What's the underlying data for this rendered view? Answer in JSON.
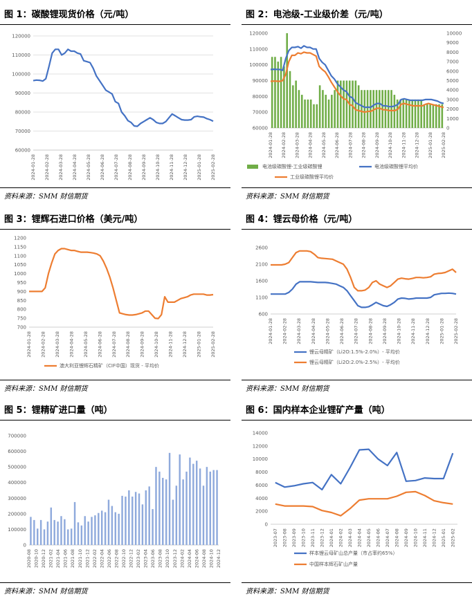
{
  "source_note": "资料来源：SMM  财信期货",
  "charts": [
    {
      "figure_title": "图 1：碳酸锂现货价格（元/吨）",
      "chart_data": {
        "type": "line",
        "title": "碳酸锂现货价格（元/吨）",
        "ylim": [
          60000,
          120000
        ],
        "yticks": [
          "60000",
          "70000",
          "80000",
          "90000",
          "100000",
          "110000",
          "120000"
        ],
        "xticks": [
          "2024-01-28",
          "2024-02-28",
          "2024-03-28",
          "2024-04-28",
          "2024-05-28",
          "2024-06-28",
          "2024-07-28",
          "2024-08-28",
          "2024-09-28",
          "2024-10-28",
          "2024-11-28",
          "2024-12-28",
          "2025-01-28",
          "2025-02-28"
        ],
        "series": [
          {
            "name": "碳酸锂现货价格",
            "color": "#4472c4",
            "values": [
              96500,
              96800,
              96700,
              96300,
              97500,
              104000,
              111000,
              113000,
              113000,
              110000,
              111000,
              113000,
              112000,
              112000,
              111000,
              110500,
              107000,
              106500,
              106000,
              103000,
              99000,
              96500,
              94000,
              91500,
              90500,
              89500,
              85500,
              84500,
              80000,
              78000,
              75500,
              74500,
              72700,
              72500,
              74000,
              75000,
              76000,
              77000,
              76000,
              74500,
              74000,
              74000,
              75000,
              77000,
              79000,
              78000,
              77000,
              76000,
              75800,
              75800,
              76000,
              77500,
              77800,
              77500,
              77300,
              76500,
              76000,
              75200
            ]
          }
        ]
      }
    },
    {
      "figure_title": "图 2：电池级-工业级价差（元/吨）",
      "chart_data": {
        "type": "line",
        "title": "电池级-工业级价差（元/吨）",
        "ylim": [
          60000,
          120000
        ],
        "y2lim": [
          0,
          10000
        ],
        "yticks": [
          "60000",
          "70000",
          "80000",
          "90000",
          "100000",
          "110000",
          "120000"
        ],
        "y2ticks": [
          "0",
          "1000",
          "2000",
          "3000",
          "4000",
          "5000",
          "6000",
          "7000",
          "8000",
          "9000",
          "10000"
        ],
        "xticks": [
          "2024-01-28",
          "2024-02-28",
          "2024-03-28",
          "2024-04-28",
          "2024-05-28",
          "2024-06-28",
          "2024-07-28",
          "2024-08-28",
          "2024-09-28",
          "2024-10-28",
          "2024-11-28",
          "2024-12-28",
          "2025-01-28",
          "2025-02-28"
        ],
        "legend": [
          "电池级碳酸锂-工业级碳酸锂",
          "电池级碳酸锂平均价",
          "工业级碳酸锂平均价"
        ],
        "bars": {
          "name": "电池级碳酸锂-工业级碳酸锂",
          "color": "#70ad47",
          "values": [
            7500,
            7500,
            7000,
            7500,
            6500,
            10000,
            6000,
            4500,
            5000,
            4000,
            3500,
            3000,
            3000,
            3000,
            2500,
            2500,
            4500,
            4000,
            3500,
            3000,
            3500,
            4000,
            5000,
            5000,
            5000,
            5000,
            5000,
            5000,
            5000,
            4500,
            4000,
            4000,
            4000,
            4000,
            4000,
            4000,
            4000,
            4000,
            4000,
            4000,
            4000,
            3500,
            3000,
            3000,
            3000,
            3000,
            3000,
            3000,
            3000,
            3000,
            3000,
            2500,
            2500,
            2500,
            2500,
            2500,
            2500,
            2500
          ]
        },
        "series": [
          {
            "name": "电池级碳酸锂平均价",
            "color": "#4472c4",
            "values": [
              97000,
              97200,
              97100,
              97000,
              96500,
              104000,
              109000,
              111000,
              111000,
              111500,
              110500,
              112000,
              111000,
              111000,
              110000,
              110000,
              104000,
              101500,
              100000,
              96500,
              93000,
              91000,
              88000,
              86000,
              84000,
              83000,
              80000,
              79000,
              76000,
              75000,
              74000,
              73000,
              73200,
              73000,
              74500,
              75500,
              75500,
              74000,
              74000,
              73500,
              73500,
              74000,
              75000,
              78000,
              78500,
              78000,
              77500,
              77500,
              77500,
              77500,
              77500,
              78000,
              78000,
              78000,
              77500,
              77000,
              76000,
              75500
            ]
          },
          {
            "name": "工业级碳酸锂平均价",
            "color": "#ed7d31",
            "values": [
              89500,
              89700,
              89600,
              89500,
              90000,
              94000,
              102000,
              106000,
              106000,
              107500,
              107000,
              108000,
              107500,
              107500,
              106500,
              105500,
              99000,
              97000,
              95500,
              92500,
              89000,
              86000,
              83000,
              80500,
              78500,
              78000,
              75000,
              74000,
              71500,
              71000,
              70500,
              70000,
              70500,
              70500,
              71500,
              72500,
              72500,
              71500,
              71500,
              71000,
              71000,
              71000,
              72000,
              75000,
              75500,
              75000,
              74500,
              74000,
              74000,
              74000,
              74000,
              75000,
              75500,
              75000,
              74500,
              74000,
              73500,
              73000
            ]
          }
        ]
      }
    },
    {
      "figure_title": "图 3：锂辉石进口价格（美元/吨）",
      "chart_data": {
        "type": "line",
        "title": "锂辉石进口价格（美元/吨）",
        "ylim": [
          700,
          1200
        ],
        "yticks": [
          "700",
          "750",
          "800",
          "850",
          "900",
          "950",
          "1000",
          "1050",
          "1100",
          "1150",
          "1200"
        ],
        "xticks": [
          "2024-01-28",
          "2024-02-28",
          "2024-03-28",
          "2024-04-28",
          "2024-05-28",
          "2024-06-28",
          "2024-07-28",
          "2024-08-28",
          "2024-09-28",
          "2024-10-28",
          "2024-11-28",
          "2024-12-28",
          "2025-01-28",
          "2025-02-28"
        ],
        "legend": [
          "澳大利亚锂辉石精矿（CIF中国）现货 - 平均价"
        ],
        "series": [
          {
            "name": "澳大利亚锂辉石精矿（CIF中国）现货 - 平均价",
            "color": "#ed7d31",
            "values": [
              900,
              900,
              900,
              900,
              900,
              920,
              1000,
              1060,
              1110,
              1130,
              1140,
              1140,
              1135,
              1130,
              1130,
              1125,
              1120,
              1120,
              1120,
              1118,
              1115,
              1110,
              1100,
              1070,
              1030,
              980,
              920,
              850,
              780,
              775,
              770,
              768,
              768,
              770,
              775,
              780,
              790,
              790,
              770,
              750,
              748,
              770,
              870,
              840,
              840,
              840,
              850,
              860,
              865,
              870,
              880,
              885,
              885,
              885,
              885,
              880,
              880,
              882
            ]
          }
        ]
      }
    },
    {
      "figure_title": "图 4：锂云母价格（元/吨）",
      "chart_data": {
        "type": "line",
        "title": "锂云母价格（元/吨）",
        "ylim": [
          600,
          2600
        ],
        "yticks": [
          "600",
          "1100",
          "1600",
          "2100",
          "2600"
        ],
        "xticks": [
          "2024-01-28",
          "2024-02-28",
          "2024-03-28",
          "2024-04-28",
          "2024-05-28",
          "2024-06-28",
          "2024-07-28",
          "2024-08-28",
          "2024-09-28",
          "2024-10-28",
          "2024-11-28",
          "2024-12-28",
          "2025-01-28",
          "2025-02-28"
        ],
        "legend": [
          "锂云母精矿（Li2O:1.5%-2.0%）- 平均价",
          "锂云母精矿（Li2O:2.0%-2.5%）- 平均价"
        ],
        "series": [
          {
            "name": "锂云母精矿（Li2O:1.5%-2.0%）- 平均价",
            "color": "#4472c4",
            "values": [
              1200,
              1200,
              1200,
              1200,
              1200,
              1250,
              1350,
              1500,
              1570,
              1570,
              1570,
              1570,
              1560,
              1550,
              1550,
              1550,
              1540,
              1520,
              1500,
              1450,
              1400,
              1300,
              1150,
              1000,
              850,
              800,
              800,
              820,
              880,
              950,
              900,
              850,
              830,
              880,
              950,
              1050,
              1080,
              1070,
              1050,
              1060,
              1080,
              1080,
              1080,
              1080,
              1100,
              1180,
              1200,
              1220,
              1220,
              1230,
              1220,
              1200
            ]
          },
          {
            "name": "锂云母精矿（Li2O:2.0%-2.5%）- 平均价",
            "color": "#ed7d31",
            "values": [
              2080,
              2080,
              2080,
              2080,
              2100,
              2150,
              2300,
              2450,
              2500,
              2500,
              2500,
              2480,
              2400,
              2300,
              2280,
              2270,
              2260,
              2250,
              2200,
              2150,
              2100,
              1950,
              1700,
              1400,
              1300,
              1300,
              1320,
              1400,
              1550,
              1600,
              1500,
              1450,
              1400,
              1450,
              1550,
              1650,
              1680,
              1660,
              1650,
              1670,
              1700,
              1700,
              1690,
              1700,
              1720,
              1800,
              1820,
              1830,
              1850,
              1900,
              1950,
              1850
            ]
          }
        ]
      }
    },
    {
      "figure_title": "图 5：锂精矿进口量（吨）",
      "chart_data": {
        "type": "bar",
        "title": "锂精矿进口量（吨）",
        "ylim": [
          0,
          700000
        ],
        "yticks": [
          "0",
          "100000",
          "200000",
          "300000",
          "400000",
          "500000",
          "600000",
          "700000"
        ],
        "xticks": [
          "2020-08",
          "2020-10",
          "2020-12",
          "2021-02",
          "2021-04",
          "2021-06",
          "2021-08",
          "2021-10",
          "2021-12",
          "2022-02",
          "2022-04",
          "2022-06",
          "2022-08",
          "2022-10",
          "2022-12",
          "2023-02",
          "2023-04",
          "2023-06",
          "2023-08",
          "2023-10",
          "2023-12",
          "2024-02",
          "2024-04",
          "2024-06",
          "2024-08",
          "2024-10",
          "2024-12"
        ],
        "series": [
          {
            "name": "锂精矿进口量",
            "color": "#8faadc",
            "values": [
              180000,
              160000,
              105000,
              160000,
              100000,
              150000,
              240000,
              160000,
              150000,
              185000,
              165000,
              100000,
              105000,
              275000,
              145000,
              125000,
              185000,
              150000,
              180000,
              190000,
              205000,
              220000,
              210000,
              290000,
              250000,
              210000,
              200000,
              315000,
              310000,
              350000,
              310000,
              340000,
              330000,
              260000,
              350000,
              375000,
              230000,
              500000,
              470000,
              430000,
              420000,
              590000,
              290000,
              380000,
              580000,
              420000,
              470000,
              560000,
              520000,
              540000,
              490000,
              380000,
              500000,
              470000,
              480000,
              480000
            ]
          }
        ]
      }
    },
    {
      "figure_title": "图 6：国内样本企业锂矿产量（吨）",
      "chart_data": {
        "type": "line",
        "title": "国内样本企业锂矿产量（吨）",
        "ylim": [
          0,
          14000
        ],
        "yticks": [
          "0",
          "2000",
          "4000",
          "6000",
          "8000",
          "10000",
          "12000",
          "14000"
        ],
        "categories": [
          "2023-07",
          "2023-08",
          "2023-09",
          "2023-10",
          "2023-11",
          "2023-12",
          "2024-01",
          "2024-02",
          "2024-03",
          "2024-04",
          "2024-05",
          "2024-06",
          "2024-07",
          "2024-08",
          "2024-09",
          "2024-10",
          "2024-11",
          "2024-12",
          "2025-01",
          "2025-02"
        ],
        "legend": [
          "样本锂云母矿山总产量（市占率约65%）",
          "中国样本辉石矿山产量"
        ],
        "series": [
          {
            "name": "样本锂云母矿山总产量（市占率约65%）",
            "color": "#4472c4",
            "values": [
              6400,
              5700,
              5900,
              6200,
              6400,
              5300,
              7600,
              6200,
              8700,
              11400,
              11500,
              10000,
              9000,
              11000,
              6600,
              6700,
              7100,
              7000,
              7000,
              10900
            ]
          },
          {
            "name": "中国样本辉石矿山产量",
            "color": "#ed7d31",
            "values": [
              3100,
              2800,
              2800,
              2800,
              2700,
              2100,
              1800,
              1300,
              2400,
              3700,
              3900,
              3900,
              3900,
              4300,
              4900,
              5000,
              4400,
              3600,
              3300,
              3100
            ]
          }
        ]
      }
    }
  ]
}
